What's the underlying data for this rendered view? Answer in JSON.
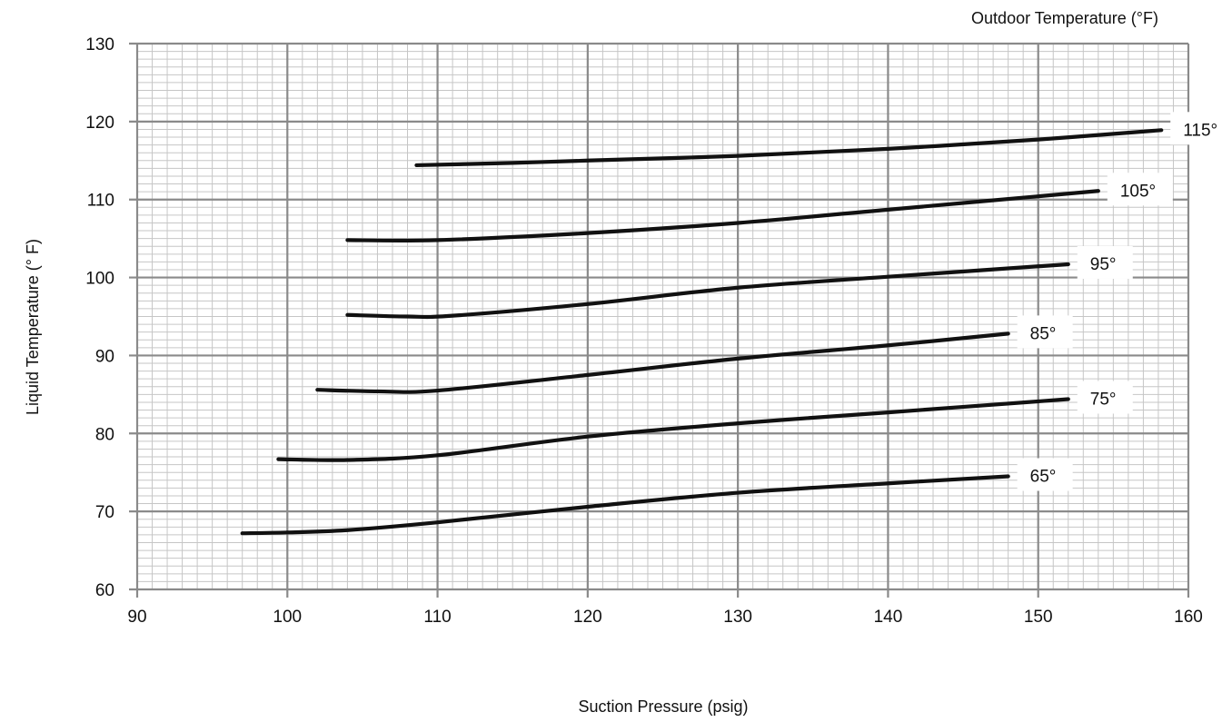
{
  "chart_data": {
    "type": "line",
    "title": "",
    "xlabel": "Suction Pressure (psig)",
    "ylabel": "Liquid Temperature (° F)",
    "legend_title": "Outdoor Temperature (°F)",
    "xlim": [
      90,
      160
    ],
    "ylim": [
      60,
      130
    ],
    "x_ticks": [
      "90",
      "100",
      "110",
      "120",
      "130",
      "140",
      "150",
      "160"
    ],
    "y_ticks": [
      "60",
      "70",
      "80",
      "90",
      "100",
      "110",
      "120",
      "130"
    ],
    "grid": "major every 10, minor every 1",
    "series": [
      {
        "name": "65°",
        "x": [
          97,
          100,
          104,
          110,
          120,
          130,
          140,
          148
        ],
        "y": [
          67.2,
          67.3,
          67.6,
          68.6,
          70.6,
          72.4,
          73.6,
          74.5
        ]
      },
      {
        "name": "75°",
        "x": [
          99.4,
          104,
          110,
          120,
          130,
          140,
          152
        ],
        "y": [
          76.7,
          76.6,
          77.2,
          79.6,
          81.3,
          82.7,
          84.4
        ]
      },
      {
        "name": "85°",
        "x": [
          102,
          106,
          110,
          120,
          130,
          140,
          148
        ],
        "y": [
          85.6,
          85.4,
          85.5,
          87.5,
          89.6,
          91.3,
          92.8
        ]
      },
      {
        "name": "95°",
        "x": [
          104,
          108,
          111,
          120,
          130,
          140,
          152
        ],
        "y": [
          95.2,
          95.0,
          95.1,
          96.6,
          98.7,
          100.1,
          101.7
        ]
      },
      {
        "name": "105°",
        "x": [
          104,
          110,
          120,
          130,
          140,
          154
        ],
        "y": [
          104.8,
          104.8,
          105.7,
          107.0,
          108.7,
          111.1
        ]
      },
      {
        "name": "115°",
        "x": [
          108.6,
          115,
          120,
          130,
          140,
          150,
          158.2
        ],
        "y": [
          114.4,
          114.7,
          115.0,
          115.6,
          116.5,
          117.7,
          118.9
        ]
      }
    ],
    "line_color": "#111111",
    "grid_major_color": "#8a8a8a",
    "grid_minor_color": "#c6c6c6"
  }
}
